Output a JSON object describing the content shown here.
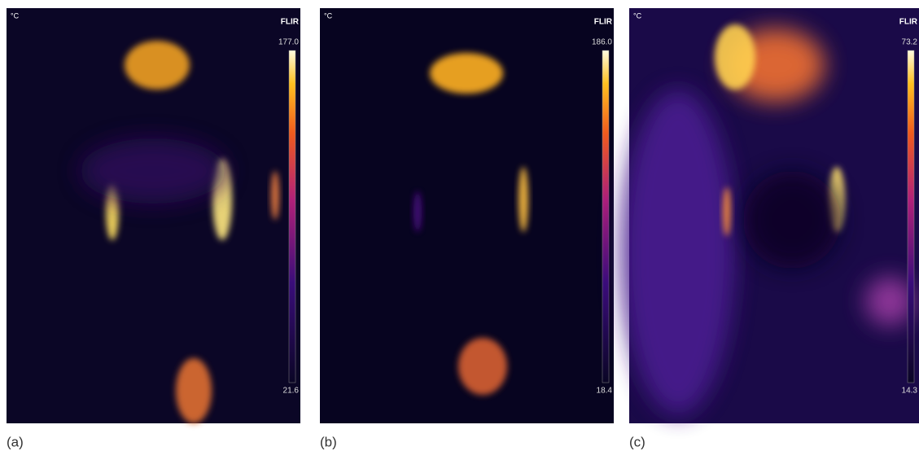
{
  "panels": [
    {
      "unit": "°C",
      "brand": "FLIR",
      "max": "177.0",
      "min": "21.6",
      "caption": "(a)"
    },
    {
      "unit": "°C",
      "brand": "FLIR",
      "max": "186.0",
      "min": "18.4",
      "caption": "(b)"
    },
    {
      "unit": "°C",
      "brand": "FLIR",
      "max": "73.2",
      "min": "14.3",
      "caption": "(c)"
    }
  ]
}
